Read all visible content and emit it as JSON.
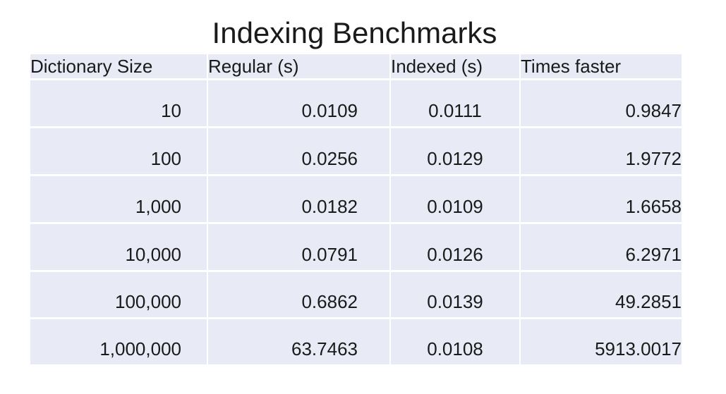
{
  "header": {
    "title": "Indexing Benchmarks"
  },
  "table": {
    "columns": [
      "Dictionary Size",
      "Regular (s)",
      "Indexed (s)",
      "Times faster"
    ],
    "rows": [
      [
        "10",
        "0.0109",
        "0.0111",
        "0.9847"
      ],
      [
        "100",
        "0.0256",
        "0.0129",
        "1.9772"
      ],
      [
        "1,000",
        "0.0182",
        "0.0109",
        "1.6658"
      ],
      [
        "10,000",
        "0.0791",
        "0.0126",
        "6.2971"
      ],
      [
        "100,000",
        "0.6862",
        "0.0139",
        "49.2851"
      ],
      [
        "1,000,000",
        "63.7463",
        "0.0108",
        "5913.0017"
      ]
    ]
  }
}
